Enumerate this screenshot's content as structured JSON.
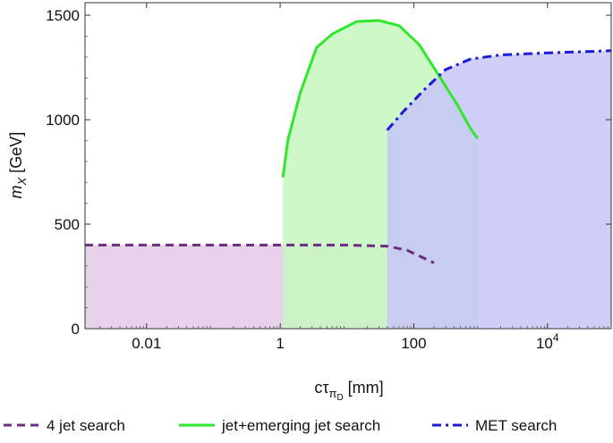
{
  "chart_data": {
    "type": "area",
    "title": "",
    "x_scale": "log",
    "xlim": [
      0.0012,
      90000
    ],
    "ylim": [
      0,
      1560
    ],
    "xlabel_main": "cτ",
    "xlabel_sub": "π",
    "xlabel_subsub": "D",
    "xlabel_unit": "[mm]",
    "ylabel_main": "m",
    "ylabel_sub": "X",
    "ylabel_unit": "[GeV]",
    "x_ticks": [
      {
        "value": 0.01,
        "label": "0.01"
      },
      {
        "value": 1,
        "label": "1"
      },
      {
        "value": 100,
        "label": "100"
      },
      {
        "value": 10000,
        "label": "10",
        "exp": "4"
      }
    ],
    "y_ticks": [
      {
        "value": 0,
        "label": "0"
      },
      {
        "value": 500,
        "label": "500"
      },
      {
        "value": 1000,
        "label": "1000"
      },
      {
        "value": 1500,
        "label": "1500"
      }
    ],
    "grid": false,
    "legend_position": "bottom",
    "series": [
      {
        "name": "4 jet search",
        "color": "#6b2c82",
        "fill": "#e4c9e7",
        "dash": "dashed",
        "points": [
          [
            0.0012,
            400
          ],
          [
            1,
            400
          ],
          [
            10,
            400
          ],
          [
            40,
            395
          ],
          [
            80,
            375
          ],
          [
            200,
            315
          ]
        ],
        "fill_to": 200
      },
      {
        "name": "jet+emerging jet search",
        "color": "#2ee82e",
        "fill": "#c7f7bf",
        "dash": "solid",
        "points": [
          [
            1.1,
            725
          ],
          [
            1.3,
            900
          ],
          [
            2,
            1130
          ],
          [
            3.5,
            1345
          ],
          [
            6,
            1410
          ],
          [
            14,
            1470
          ],
          [
            30,
            1475
          ],
          [
            60,
            1450
          ],
          [
            120,
            1360
          ],
          [
            250,
            1200
          ],
          [
            450,
            1070
          ],
          [
            700,
            960
          ],
          [
            900,
            910
          ]
        ],
        "fill_to": 900
      },
      {
        "name": "MET search",
        "color": "#1a1ad9",
        "fill": "#c6c6f7",
        "dash": "dashdot",
        "points": [
          [
            40,
            950
          ],
          [
            70,
            1040
          ],
          [
            150,
            1150
          ],
          [
            300,
            1240
          ],
          [
            700,
            1290
          ],
          [
            2000,
            1310
          ],
          [
            10000,
            1320
          ],
          [
            90000,
            1330
          ]
        ],
        "fill_to": 90000
      }
    ]
  }
}
